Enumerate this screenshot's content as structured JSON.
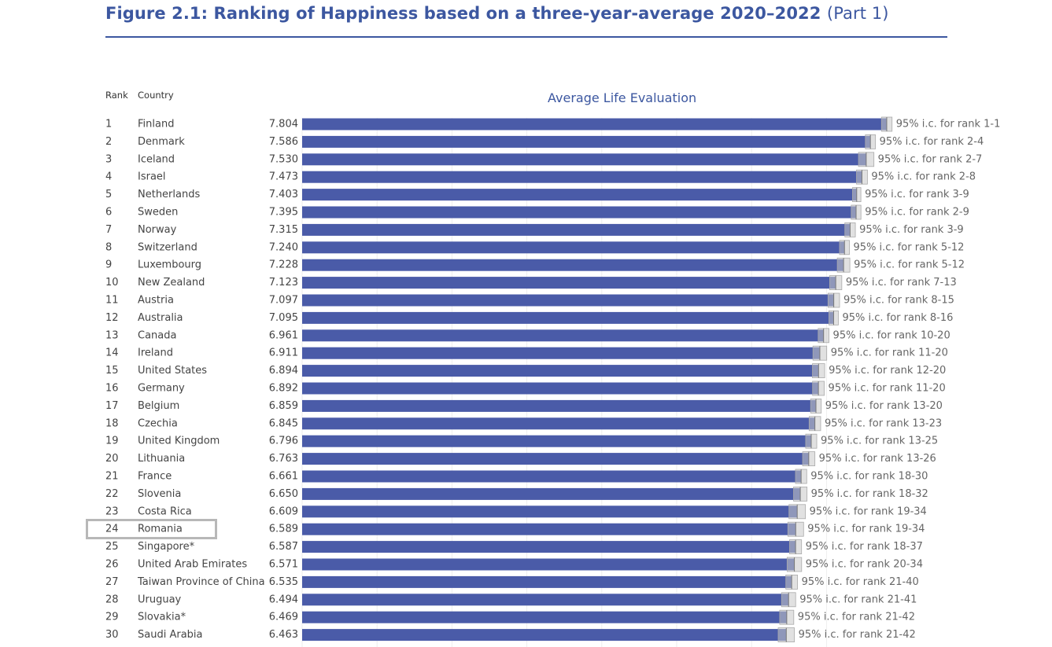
{
  "header": {
    "title": "Figure 2.1: Ranking of Happiness based on a three-year-average 2020–2022",
    "title_part": "(Part 1)",
    "rank_col": "Rank",
    "country_col": "Country",
    "highlighted_country": "Romania"
  },
  "colors": {
    "accent": "#3c57a0",
    "bar": "#4a5ba8",
    "ci": "#c8c8c8",
    "label": "#666666"
  },
  "chart_data": {
    "type": "bar",
    "orientation": "horizontal",
    "title": "Average Life Evaluation",
    "xlim": [
      0,
      7.92
    ],
    "rows": [
      {
        "rank": "1",
        "country": "Finland",
        "score": 7.804,
        "score_label": "7.804",
        "ci": [
          7.734,
          7.875
        ],
        "ci_label": "95% i.c. for rank 1-1"
      },
      {
        "rank": "2",
        "country": "Denmark",
        "score": 7.586,
        "score_label": "7.586",
        "ci": [
          7.519,
          7.653
        ],
        "ci_label": "95% i.c. for rank 2-4"
      },
      {
        "rank": "3",
        "country": "Iceland",
        "score": 7.53,
        "score_label": "7.530",
        "ci": [
          7.427,
          7.633
        ],
        "ci_label": "95% i.c. for rank 2-7"
      },
      {
        "rank": "4",
        "country": "Israel",
        "score": 7.473,
        "score_label": "7.473",
        "ci": [
          7.4,
          7.546
        ],
        "ci_label": "95% i.c. for rank 2-8"
      },
      {
        "rank": "5",
        "country": "Netherlands",
        "score": 7.403,
        "score_label": "7.403",
        "ci": [
          7.347,
          7.459
        ],
        "ci_label": "95% i.c. for rank 3-9"
      },
      {
        "rank": "6",
        "country": "Sweden",
        "score": 7.395,
        "score_label": "7.395",
        "ci": [
          7.33,
          7.46
        ],
        "ci_label": "95% i.c. for rank 2-9"
      },
      {
        "rank": "7",
        "country": "Norway",
        "score": 7.315,
        "score_label": "7.315",
        "ci": [
          7.245,
          7.385
        ],
        "ci_label": "95% i.c. for rank 3-9"
      },
      {
        "rank": "8",
        "country": "Switzerland",
        "score": 7.24,
        "score_label": "7.240",
        "ci": [
          7.174,
          7.306
        ],
        "ci_label": "95% i.c. for rank 5-12"
      },
      {
        "rank": "9",
        "country": "Luxembourg",
        "score": 7.228,
        "score_label": "7.228",
        "ci": [
          7.144,
          7.312
        ],
        "ci_label": "95% i.c. for rank 5-12"
      },
      {
        "rank": "10",
        "country": "New Zealand",
        "score": 7.123,
        "score_label": "7.123",
        "ci": [
          7.042,
          7.204
        ],
        "ci_label": "95% i.c. for rank 7-13"
      },
      {
        "rank": "11",
        "country": "Austria",
        "score": 7.097,
        "score_label": "7.097",
        "ci": [
          7.02,
          7.174
        ],
        "ci_label": "95% i.c. for rank 8-15"
      },
      {
        "rank": "12",
        "country": "Australia",
        "score": 7.095,
        "score_label": "7.095",
        "ci": [
          7.032,
          7.158
        ],
        "ci_label": "95% i.c. for rank 8-16"
      },
      {
        "rank": "13",
        "country": "Canada",
        "score": 6.961,
        "score_label": "6.961",
        "ci": [
          6.889,
          7.033
        ],
        "ci_label": "95% i.c. for rank 10-20"
      },
      {
        "rank": "14",
        "country": "Ireland",
        "score": 6.911,
        "score_label": "6.911",
        "ci": [
          6.819,
          7.003
        ],
        "ci_label": "95% i.c. for rank 11-20"
      },
      {
        "rank": "15",
        "country": "United States",
        "score": 6.894,
        "score_label": "6.894",
        "ci": [
          6.812,
          6.976
        ],
        "ci_label": "95% i.c. for rank 12-20"
      },
      {
        "rank": "16",
        "country": "Germany",
        "score": 6.892,
        "score_label": "6.892",
        "ci": [
          6.814,
          6.97
        ],
        "ci_label": "95% i.c. for rank 11-20"
      },
      {
        "rank": "17",
        "country": "Belgium",
        "score": 6.859,
        "score_label": "6.859",
        "ci": [
          6.788,
          6.93
        ],
        "ci_label": "95% i.c. for rank 13-20"
      },
      {
        "rank": "18",
        "country": "Czechia",
        "score": 6.845,
        "score_label": "6.845",
        "ci": [
          6.768,
          6.922
        ],
        "ci_label": "95% i.c. for rank 13-23"
      },
      {
        "rank": "19",
        "country": "United Kingdom",
        "score": 6.796,
        "score_label": "6.796",
        "ci": [
          6.722,
          6.87
        ],
        "ci_label": "95% i.c. for rank 13-25"
      },
      {
        "rank": "20",
        "country": "Lithuania",
        "score": 6.763,
        "score_label": "6.763",
        "ci": [
          6.681,
          6.845
        ],
        "ci_label": "95% i.c. for rank 13-26"
      },
      {
        "rank": "21",
        "country": "France",
        "score": 6.661,
        "score_label": "6.661",
        "ci": [
          6.586,
          6.736
        ],
        "ci_label": "95% i.c. for rank 18-30"
      },
      {
        "rank": "22",
        "country": "Slovenia",
        "score": 6.65,
        "score_label": "6.650",
        "ci": [
          6.56,
          6.74
        ],
        "ci_label": "95% i.c. for rank 18-32"
      },
      {
        "rank": "23",
        "country": "Costa Rica",
        "score": 6.609,
        "score_label": "6.609",
        "ci": [
          6.499,
          6.719
        ],
        "ci_label": "95% i.c. for rank 19-34"
      },
      {
        "rank": "24",
        "country": "Romania",
        "score": 6.589,
        "score_label": "6.589",
        "ci": [
          6.484,
          6.694
        ],
        "ci_label": "95% i.c. for rank 19-34"
      },
      {
        "rank": "25",
        "country": "Singapore*",
        "score": 6.587,
        "score_label": "6.587",
        "ci": [
          6.507,
          6.667
        ],
        "ci_label": "95% i.c. for rank 18-37"
      },
      {
        "rank": "26",
        "country": "United Arab Emirates",
        "score": 6.571,
        "score_label": "6.571",
        "ci": [
          6.474,
          6.668
        ],
        "ci_label": "95% i.c. for rank 20-34"
      },
      {
        "rank": "27",
        "country": "Taiwan Province of China",
        "score": 6.535,
        "score_label": "6.535",
        "ci": [
          6.457,
          6.613
        ],
        "ci_label": "95% i.c. for rank 21-40"
      },
      {
        "rank": "28",
        "country": "Uruguay",
        "score": 6.494,
        "score_label": "6.494",
        "ci": [
          6.4,
          6.588
        ],
        "ci_label": "95% i.c. for rank 21-41"
      },
      {
        "rank": "29",
        "country": "Slovakia*",
        "score": 6.469,
        "score_label": "6.469",
        "ci": [
          6.375,
          6.563
        ],
        "ci_label": "95% i.c. for rank 21-42"
      },
      {
        "rank": "30",
        "country": "Saudi Arabia",
        "score": 6.463,
        "score_label": "6.463",
        "ci": [
          6.355,
          6.571
        ],
        "ci_label": "95% i.c. for rank 21-42"
      }
    ]
  }
}
